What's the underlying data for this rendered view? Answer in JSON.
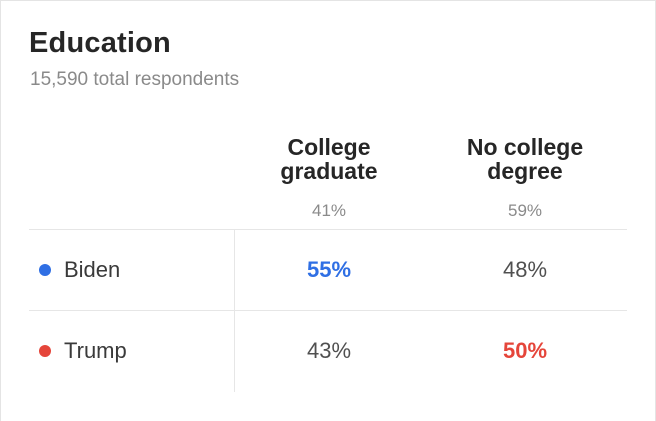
{
  "header": {
    "title": "Education",
    "subtitle": "15,590 total respondents"
  },
  "columns": [
    {
      "label_line1": "College",
      "label_line2": "graduate",
      "share": "41%"
    },
    {
      "label_line1": "No college",
      "label_line2": "degree",
      "share": "59%"
    }
  ],
  "rows": [
    {
      "candidate": "Biden",
      "values": [
        "55%",
        "48%"
      ],
      "winner_index": 0
    },
    {
      "candidate": "Trump",
      "values": [
        "43%",
        "50%"
      ],
      "winner_index": 1
    }
  ],
  "colors": {
    "biden": "#2f6fe4",
    "trump": "#e5453a"
  }
}
